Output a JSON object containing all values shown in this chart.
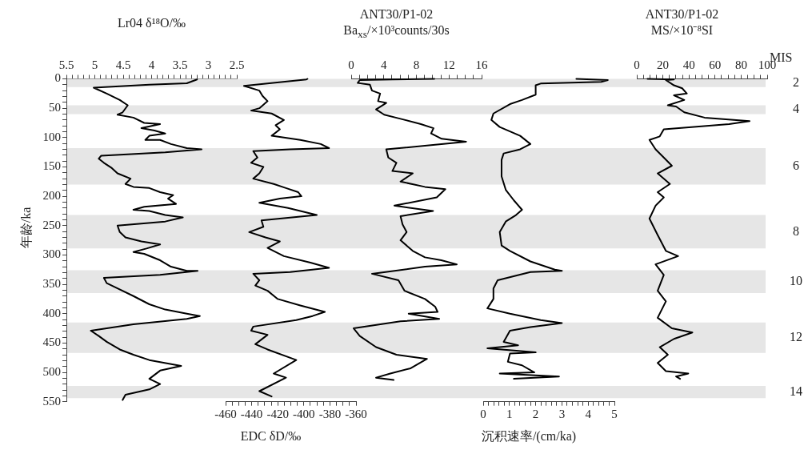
{
  "chart_data": [
    {
      "type": "line",
      "xlabel": "Lr04 δ¹⁸O/‰",
      "ylabel": "年龄/ka",
      "xlim": [
        5.5,
        2.5
      ],
      "ylim": [
        550,
        0
      ],
      "xticks": [
        5.5,
        {
          "value": 5.4,
          "label": null
        },
        {
          "value": 5.3,
          "label": null
        },
        {
          "value": 5.2,
          "label": null
        },
        {
          "value": 5.1,
          "label": null
        },
        5,
        {
          "value": 4.9,
          "label": null
        },
        {
          "value": 4.8,
          "label": null
        },
        {
          "value": 4.7,
          "label": null
        },
        {
          "value": 4.6,
          "label": null
        },
        4.5,
        {
          "value": 4.4,
          "label": null
        },
        {
          "value": 4.3,
          "label": null
        },
        {
          "value": 4.2,
          "label": null
        },
        {
          "value": 4.1,
          "label": null
        },
        4,
        {
          "value": 3.9,
          "label": null
        },
        {
          "value": 3.8,
          "label": null
        },
        {
          "value": 3.7,
          "label": null
        },
        {
          "value": 3.6,
          "label": null
        },
        3.5,
        {
          "value": 3.4,
          "label": null
        },
        {
          "value": 3.3,
          "label": null
        },
        {
          "value": 3.2,
          "label": null
        },
        {
          "value": 3.1,
          "label": null
        },
        3,
        {
          "value": 2.9,
          "label": null
        },
        {
          "value": 2.8,
          "label": null
        },
        {
          "value": 2.7,
          "label": null
        },
        {
          "value": 2.6,
          "label": null
        },
        2.5
      ],
      "yticks": [
        0,
        {
          "value": 10,
          "label": null
        },
        {
          "value": 20,
          "label": null
        },
        {
          "value": 30,
          "label": null
        },
        {
          "value": 40,
          "label": null
        },
        50,
        {
          "value": 60,
          "label": null
        },
        {
          "value": 70,
          "label": null
        },
        {
          "value": 80,
          "label": null
        },
        {
          "value": 90,
          "label": null
        },
        100,
        {
          "value": 110,
          "label": null
        },
        {
          "value": 120,
          "label": null
        },
        {
          "value": 130,
          "label": null
        },
        {
          "value": 140,
          "label": null
        },
        150,
        {
          "value": 160,
          "label": null
        },
        {
          "value": 170,
          "label": null
        },
        {
          "value": 180,
          "label": null
        },
        {
          "value": 190,
          "label": null
        },
        200,
        {
          "value": 210,
          "label": null
        },
        {
          "value": 220,
          "label": null
        },
        {
          "value": 230,
          "label": null
        },
        {
          "value": 240,
          "label": null
        },
        250,
        {
          "value": 260,
          "label": null
        },
        {
          "value": 270,
          "label": null
        },
        {
          "value": 280,
          "label": null
        },
        {
          "value": 290,
          "label": null
        },
        300,
        {
          "value": 310,
          "label": null
        },
        {
          "value": 320,
          "label": null
        },
        {
          "value": 330,
          "label": null
        },
        {
          "value": 340,
          "label": null
        },
        350,
        {
          "value": 360,
          "label": null
        },
        {
          "value": 370,
          "label": null
        },
        {
          "value": 380,
          "label": null
        },
        {
          "value": 390,
          "label": null
        },
        400,
        {
          "value": 410,
          "label": null
        },
        {
          "value": 420,
          "label": null
        },
        {
          "value": 430,
          "label": null
        },
        {
          "value": 440,
          "label": null
        },
        450,
        {
          "value": 460,
          "label": null
        },
        {
          "value": 470,
          "label": null
        },
        {
          "value": 480,
          "label": null
        },
        {
          "value": 490,
          "label": null
        },
        500,
        {
          "value": 510,
          "label": null
        },
        {
          "value": 520,
          "label": null
        },
        {
          "value": 530,
          "label": null
        },
        {
          "value": 540,
          "label": null
        },
        550
      ],
      "bands": [
        {
          "axis": "y",
          "from": 0,
          "to": 14,
          "label": "2",
          "color": "#e6e6e6"
        },
        {
          "axis": "y",
          "from": 45,
          "to": 60,
          "label": "4",
          "color": "#e6e6e6"
        },
        {
          "axis": "y",
          "from": 118,
          "to": 180,
          "label": "6",
          "color": "#e6e6e6"
        },
        {
          "axis": "y",
          "from": 232,
          "to": 289,
          "label": "8",
          "color": "#e6e6e6"
        },
        {
          "axis": "y",
          "from": 326,
          "to": 365,
          "label": "10",
          "color": "#e6e6e6"
        },
        {
          "axis": "y",
          "from": 415,
          "to": 467,
          "label": "12",
          "color": "#e6e6e6"
        },
        {
          "axis": "y",
          "from": 523,
          "to": 544,
          "label": "14",
          "color": "#e6e6e6"
        }
      ],
      "series": [
        {
          "color": "#000000",
          "x": [
            3.2,
            3.38,
            4.04,
            5.02,
            4.79,
            4.56,
            4.42,
            4.51,
            4.6,
            4.32,
            4.13,
            3.85,
            4.18,
            3.95,
            3.76,
            4.04,
            4.11,
            3.85,
            3.66,
            3.38,
            3.12,
            3.76,
            4.89,
            4.93,
            4.84,
            4.7,
            4.6,
            4.37,
            4.46,
            4.32,
            4.04,
            3.85,
            3.62,
            3.71,
            3.57,
            4.13,
            4.32,
            4.04,
            3.76,
            3.45,
            3.76,
            4.6,
            4.56,
            4.46,
            4.18,
            3.85,
            4.09,
            4.32,
            4.13,
            3.85,
            3.66,
            3.38,
            3.19,
            3.85,
            4.84,
            4.79,
            4.6,
            4.32,
            4.04,
            3.76,
            3.38,
            3.15,
            3.38,
            4.32,
            5.07,
            4.93,
            4.79,
            4.56,
            4.32,
            4.04,
            3.48,
            3.85,
            4.04,
            3.85,
            4.04,
            4.46,
            4.51
          ],
          "values": [
            1,
            7.5,
            10,
            15,
            25,
            36,
            45,
            57,
            61,
            66,
            75,
            77,
            84,
            88,
            93,
            97,
            104,
            104,
            111,
            118,
            120,
            125,
            131,
            136,
            143,
            152,
            161,
            170,
            179,
            184,
            186,
            193,
            198,
            204,
            213,
            218,
            223,
            225,
            232,
            236,
            243,
            250,
            261,
            270,
            277,
            282,
            289,
            295,
            298,
            309,
            320,
            327,
            327,
            334,
            339,
            348,
            357,
            370,
            384,
            393,
            400,
            404,
            409,
            418,
            429,
            438,
            448,
            461,
            470,
            479,
            489,
            497,
            511,
            520,
            529,
            538,
            547
          ]
        }
      ]
    },
    {
      "type": "line",
      "xlabel": "EDC δD/‰",
      "xlim": [
        -460,
        -360
      ],
      "ylim": [
        550,
        0
      ],
      "tick_labels": "x",
      "xticks": [
        -460,
        {
          "value": -455,
          "label": null
        },
        {
          "value": -450,
          "label": null
        },
        {
          "value": -445,
          "label": null
        },
        -440,
        {
          "value": -435,
          "label": null
        },
        {
          "value": -430,
          "label": null
        },
        {
          "value": -425,
          "label": null
        },
        -420,
        {
          "value": -415,
          "label": null
        },
        {
          "value": -410,
          "label": null
        },
        {
          "value": -405,
          "label": null
        },
        -400,
        {
          "value": -395,
          "label": null
        },
        {
          "value": -390,
          "label": null
        },
        {
          "value": -385,
          "label": null
        },
        -380,
        {
          "value": -375,
          "label": null
        },
        {
          "value": -370,
          "label": null
        },
        {
          "value": -365,
          "label": null
        },
        -360
      ],
      "series": [
        {
          "color": "#000000",
          "x": [
            -397.2,
            -398,
            -445.9,
            -434.1,
            -431.7,
            -427.8,
            -434.1,
            -440.4,
            -424.7,
            -415.3,
            -421.6,
            -418.4,
            -424.7,
            -402.7,
            -387,
            -380.7,
            -410.5,
            -438.8,
            -435.6,
            -440.4,
            -431,
            -434.1,
            -438.8,
            -423.1,
            -413.7,
            -404.3,
            -401.9,
            -418.4,
            -434.1,
            -412.1,
            -390.1,
            -432.5,
            -431,
            -441.9,
            -429.4,
            -418.4,
            -427.8,
            -415.3,
            -394.9,
            -380.7,
            -410.5,
            -438.8,
            -434.1,
            -437.2,
            -427.8,
            -420,
            -402.7,
            -383.9,
            -393.3,
            -405.8,
            -438.8,
            -440.4,
            -427.8,
            -437.2,
            -427.8,
            -405.8,
            -423.1,
            -413.7,
            -434.1,
            -424.7
          ],
          "values": [
            0,
            1,
            12,
            20,
            29,
            38,
            50,
            54,
            59,
            70,
            79,
            86,
            97,
            104,
            111,
            118,
            120,
            123,
            134,
            143,
            150,
            161,
            170,
            179,
            186,
            193,
            200,
            204,
            211,
            220,
            232,
            241,
            252,
            261,
            270,
            277,
            288,
            302,
            313,
            322,
            329,
            332,
            343,
            352,
            361,
            375,
            386,
            397,
            404,
            411,
            422,
            429,
            436,
            452,
            461,
            479,
            502,
            509,
            532,
            541
          ]
        }
      ]
    },
    {
      "type": "line",
      "title": "ANT30/P1-02",
      "xlabel": "Ba$_{xs}$/×10³counts/30s",
      "xlim": [
        0,
        16
      ],
      "ylim": [
        550,
        0
      ],
      "tick_labels": "x",
      "xticks": [
        0,
        {
          "value": 1,
          "label": null
        },
        {
          "value": 2,
          "label": null
        },
        {
          "value": 3,
          "label": null
        },
        4,
        {
          "value": 5,
          "label": null
        },
        {
          "value": 6,
          "label": null
        },
        {
          "value": 7,
          "label": null
        },
        8,
        {
          "value": 9,
          "label": null
        },
        {
          "value": 10,
          "label": null
        },
        {
          "value": 11,
          "label": null
        },
        12,
        {
          "value": 13,
          "label": null
        },
        {
          "value": 14,
          "label": null
        },
        {
          "value": 15,
          "label": null
        },
        16
      ],
      "series": [
        {
          "color": "#000000",
          "x": [
            10.2,
            5.1,
            1.05,
            0.8,
            2.3,
            2.55,
            3.55,
            3.3,
            4.3,
            3.05,
            4.05,
            6.05,
            8.55,
            10.1,
            9.8,
            11.1,
            14.1,
            9.8,
            4.3,
            4.55,
            5.55,
            5.05,
            7.55,
            6.05,
            9.05,
            11.55,
            10.5,
            5.3,
            10.05,
            6.05,
            6.3,
            6.8,
            6.05,
            7.55,
            9.05,
            11.05,
            12.95,
            9.05,
            2.55,
            5.8,
            6.55,
            9.05,
            10.3,
            10.6,
            7.05,
            10.8,
            6.05,
            0.3,
            1.05,
            3.05,
            5.55,
            9.3,
            7.3,
            4.8,
            3.05,
            5.2
          ],
          "values": [
            0,
            1,
            2,
            7,
            10,
            20,
            25,
            38,
            41,
            52,
            61,
            68,
            77,
            84,
            93,
            102,
            107,
            113,
            120,
            134,
            143,
            157,
            161,
            175,
            184,
            188,
            202,
            216,
            225,
            234,
            248,
            261,
            275,
            293,
            304,
            309,
            316,
            320,
            332,
            343,
            361,
            375,
            388,
            397,
            400,
            409,
            413,
            425,
            438,
            457,
            470,
            477,
            493,
            502,
            509,
            513
          ]
        }
      ]
    },
    {
      "type": "line",
      "xlabel": "沉积速率/(cm/ka)",
      "xlim": [
        0,
        5
      ],
      "ylim": [
        550,
        0
      ],
      "tick_labels": "x",
      "xticks": [
        0,
        {
          "value": 0.2,
          "label": null
        },
        {
          "value": 0.4,
          "label": null
        },
        {
          "value": 0.6,
          "label": null
        },
        {
          "value": 0.8,
          "label": null
        },
        1,
        {
          "value": 1.2,
          "label": null
        },
        {
          "value": 1.4,
          "label": null
        },
        {
          "value": 1.6,
          "label": null
        },
        {
          "value": 1.8,
          "label": null
        },
        2,
        {
          "value": 2.2,
          "label": null
        },
        {
          "value": 2.4,
          "label": null
        },
        {
          "value": 2.6,
          "label": null
        },
        {
          "value": 2.8,
          "label": null
        },
        3,
        {
          "value": 3.2,
          "label": null
        },
        {
          "value": 3.4,
          "label": null
        },
        {
          "value": 3.6,
          "label": null
        },
        {
          "value": 3.8,
          "label": null
        },
        4,
        {
          "value": 4.2,
          "label": null
        },
        {
          "value": 4.4,
          "label": null
        },
        {
          "value": 4.6,
          "label": null
        },
        {
          "value": 4.8,
          "label": null
        },
        5
      ],
      "series": [
        {
          "color": "#000000",
          "x": [
            3.55,
            4.75,
            4.5,
            2.19,
            2.0,
            2.0,
            1.48,
            1.02,
            0.39,
            0.31,
            0.63,
            1.41,
            1.8,
            1.41,
            0.78,
            0.7,
            0.7,
            0.86,
            1.17,
            1.48,
            1.25,
            0.86,
            0.63,
            0.7,
            1.02,
            1.8,
            2.73,
            3.0,
            1.8,
            0.55,
            0.39,
            0.39,
            0.16,
            1.02,
            2.19,
            3.0,
            1.8,
            1.02,
            0.78,
            1.33,
            0.16,
            2.0,
            1.02,
            0.94,
            1.48,
            1.95,
            0.63,
            2.89,
            1.17
          ],
          "values": [
            0,
            2,
            5,
            8,
            11,
            27,
            36,
            43,
            59,
            70,
            82,
            97,
            111,
            120,
            127,
            138,
            166,
            189,
            207,
            223,
            232,
            243,
            261,
            284,
            293,
            311,
            325,
            327,
            329,
            343,
            357,
            375,
            391,
            400,
            411,
            416,
            423,
            429,
            448,
            454,
            459,
            466,
            468,
            482,
            488,
            500,
            502,
            507,
            511
          ]
        }
      ]
    },
    {
      "type": "line",
      "title": "ANT30/P1-02",
      "xlabel": "MS/×10⁻⁸SI",
      "xlim": [
        0,
        100
      ],
      "ylim": [
        550,
        0
      ],
      "tick_labels": "x",
      "annotations": [
        "MIS"
      ],
      "xticks": [
        0,
        {
          "value": 5,
          "label": null
        },
        {
          "value": 10,
          "label": null
        },
        {
          "value": 15,
          "label": null
        },
        20,
        {
          "value": 25,
          "label": null
        },
        {
          "value": 30,
          "label": null
        },
        {
          "value": 35,
          "label": null
        },
        40,
        {
          "value": 45,
          "label": null
        },
        {
          "value": 50,
          "label": null
        },
        {
          "value": 55,
          "label": null
        },
        60,
        {
          "value": 65,
          "label": null
        },
        {
          "value": 70,
          "label": null
        },
        {
          "value": 75,
          "label": null
        },
        80,
        {
          "value": 85,
          "label": null
        },
        {
          "value": 90,
          "label": null
        },
        {
          "value": 95,
          "label": null
        },
        100
      ],
      "series": [
        {
          "color": "#000000",
          "x": [
            8.2,
            28.5,
            22.3,
            28.5,
            34.8,
            38.4,
            28.5,
            36.4,
            23.8,
            30.1,
            36.4,
            52,
            86.5,
            70.8,
            20.7,
            17.6,
            9.7,
            14.4,
            20.7,
            26.9,
            16,
            25.4,
            16,
            20.7,
            14.4,
            9.7,
            16,
            22.3,
            31.7,
            14.4,
            20.7,
            16,
            22.3,
            16,
            26.9,
            42.6,
            28.5,
            17.6,
            23.8,
            16,
            22.3,
            39.5,
            30.1,
            33.2
          ],
          "values": [
            0,
            1,
            2,
            11,
            16,
            25,
            28,
            36,
            45,
            47,
            57,
            66,
            72,
            77,
            86,
            98,
            104,
            120,
            134,
            148,
            161,
            179,
            193,
            202,
            216,
            238,
            266,
            293,
            302,
            316,
            334,
            361,
            379,
            407,
            425,
            432,
            443,
            457,
            470,
            484,
            498,
            502,
            507,
            511
          ]
        }
      ]
    }
  ]
}
